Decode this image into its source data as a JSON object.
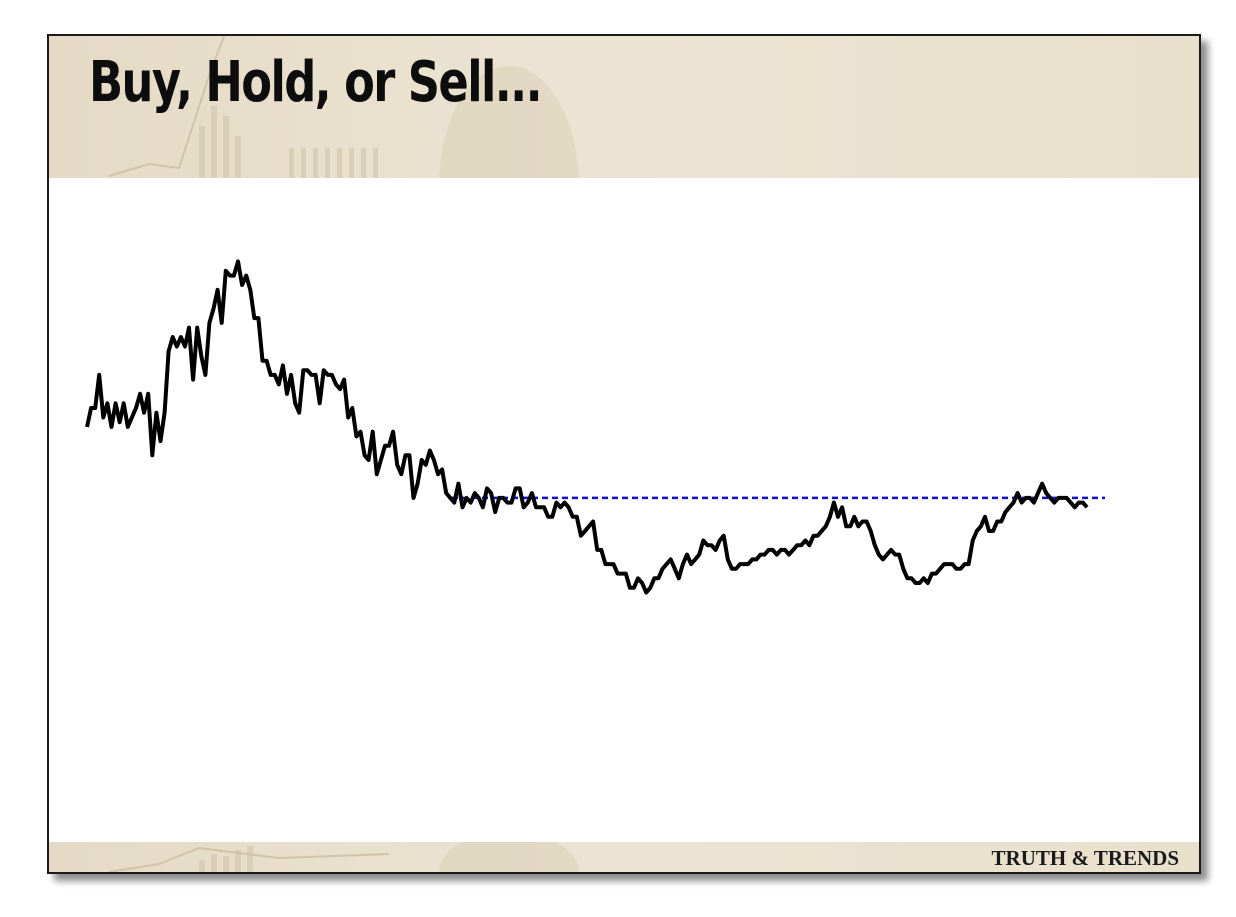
{
  "slide": {
    "title": "Buy, Hold, or Sell...",
    "brand": "TRUTH & TRENDS"
  },
  "colors": {
    "price_line": "#000000",
    "resistance_line": "#1010c8",
    "banner": "#e9e0cc"
  },
  "chart_data": {
    "type": "line",
    "title": "",
    "xlabel": "",
    "ylabel": "",
    "axes_visible": false,
    "grid": false,
    "ylim": [
      0,
      100
    ],
    "series": [
      {
        "values": [
          59,
          63,
          63,
          70,
          61,
          64,
          59,
          64,
          60,
          64,
          59,
          61,
          63,
          66,
          62,
          66,
          53,
          62,
          56,
          62,
          75,
          78,
          76,
          78,
          76,
          80,
          69,
          80,
          74,
          70,
          81,
          84,
          88,
          81,
          92,
          91,
          91,
          94,
          89,
          91,
          88,
          82,
          82,
          73,
          73,
          70,
          70,
          68,
          72,
          66,
          70,
          64,
          62,
          71,
          71,
          70,
          70,
          64,
          71,
          70,
          70,
          68,
          67,
          69,
          61,
          63,
          57,
          58,
          53,
          52,
          58,
          49,
          52,
          55,
          55,
          58,
          51,
          49,
          53,
          53,
          44,
          47,
          52,
          51,
          54,
          52,
          49,
          50,
          45,
          44,
          43,
          47,
          42,
          44,
          43,
          45,
          44,
          42,
          46,
          45,
          41,
          44,
          44,
          43,
          43,
          46,
          46,
          42,
          43,
          45,
          42,
          42,
          42,
          40,
          40,
          43,
          42,
          43,
          42,
          40,
          40,
          36,
          37,
          38,
          39,
          33,
          33,
          30,
          30,
          30,
          28,
          28,
          28,
          25,
          25,
          27,
          26,
          24,
          25,
          27,
          27,
          29,
          30,
          31,
          29,
          27,
          30,
          32,
          30,
          31,
          32,
          35,
          34,
          34,
          33,
          35,
          36,
          31,
          29,
          29,
          30,
          30,
          30,
          31,
          31,
          32,
          32,
          33,
          33,
          32,
          33,
          33,
          32,
          33,
          34,
          34,
          35,
          34,
          36,
          36,
          37,
          38,
          40,
          43,
          40,
          42,
          38,
          38,
          40,
          38,
          39,
          39,
          37,
          34,
          32,
          31,
          32,
          33,
          32,
          32,
          29,
          27,
          27,
          26,
          26,
          27,
          26,
          28,
          28,
          29,
          30,
          30,
          30,
          29,
          29,
          30,
          30,
          35,
          37,
          38,
          40,
          37,
          37,
          39,
          39,
          41,
          42,
          43,
          45,
          43,
          44,
          44,
          43,
          45,
          47,
          45,
          44,
          43,
          44,
          44,
          44,
          43,
          42,
          43,
          43,
          42
        ]
      }
    ],
    "annotations": [
      {
        "type": "horizontal_dashed_line",
        "y": 44
      }
    ]
  }
}
